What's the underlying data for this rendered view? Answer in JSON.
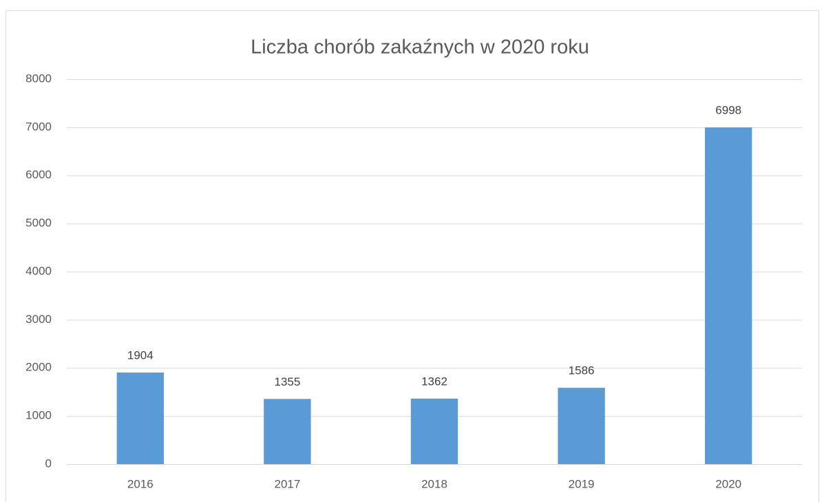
{
  "chart_data": {
    "type": "bar",
    "title": "Liczba chorób zakaźnych w 2020 roku",
    "categories": [
      "2016",
      "2017",
      "2018",
      "2019",
      "2020"
    ],
    "values": [
      1904,
      1355,
      1362,
      1586,
      6998
    ],
    "color": "#5b9bd5",
    "ylim": [
      0,
      8000
    ],
    "yticks": [
      0,
      1000,
      2000,
      3000,
      4000,
      5000,
      6000,
      7000,
      8000
    ],
    "grid": true
  }
}
